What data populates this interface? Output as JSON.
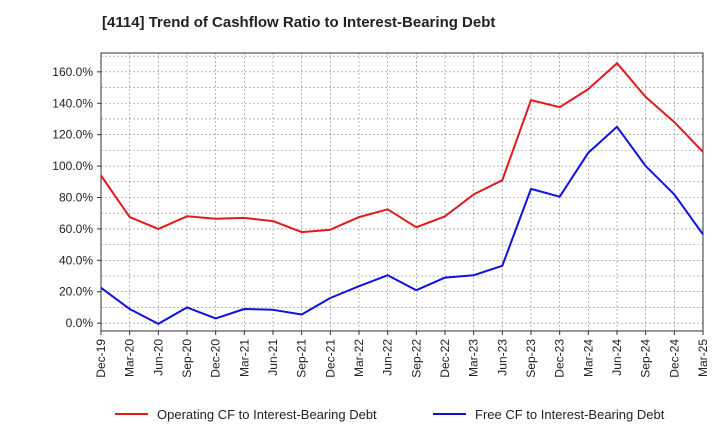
{
  "chart_data": {
    "type": "line",
    "title": "[4114]  Trend of Cashflow Ratio to Interest-Bearing Debt",
    "xlabel": "",
    "ylabel": "",
    "ylim": [
      -5,
      172
    ],
    "grid": true,
    "legend_position": "bottom",
    "yticks": [
      0,
      20,
      40,
      60,
      80,
      100,
      120,
      140,
      160
    ],
    "ytick_labels": [
      "0.0%",
      "20.0%",
      "40.0%",
      "60.0%",
      "80.0%",
      "100.0%",
      "120.0%",
      "140.0%",
      "160.0%"
    ],
    "categories": [
      "Dec-19",
      "Mar-20",
      "Jun-20",
      "Sep-20",
      "Dec-20",
      "Mar-21",
      "Jun-21",
      "Sep-21",
      "Dec-21",
      "Mar-22",
      "Jun-22",
      "Sep-22",
      "Dec-22",
      "Mar-23",
      "Jun-23",
      "Sep-23",
      "Dec-23",
      "Mar-24",
      "Jun-24",
      "Sep-24",
      "Dec-24",
      "Mar-25"
    ],
    "series": [
      {
        "name": "Operating CF to Interest-Bearing Debt",
        "color": "#e31a1c",
        "values": [
          94.0,
          67.5,
          60.0,
          68.0,
          66.5,
          67.0,
          65.0,
          58.0,
          59.5,
          67.5,
          72.5,
          61.0,
          68.0,
          82.0,
          91.0,
          142.0,
          137.5,
          149.0,
          165.5,
          144.0,
          128.0,
          109.0
        ]
      },
      {
        "name": "Free CF to Interest-Bearing Debt",
        "color": "#1010e0",
        "values": [
          22.5,
          9.0,
          -0.5,
          10.0,
          3.0,
          9.0,
          8.5,
          5.5,
          16.0,
          23.5,
          30.5,
          21.0,
          29.0,
          30.5,
          36.5,
          85.5,
          80.5,
          108.5,
          125.0,
          100.0,
          82.0,
          56.5
        ]
      }
    ]
  }
}
